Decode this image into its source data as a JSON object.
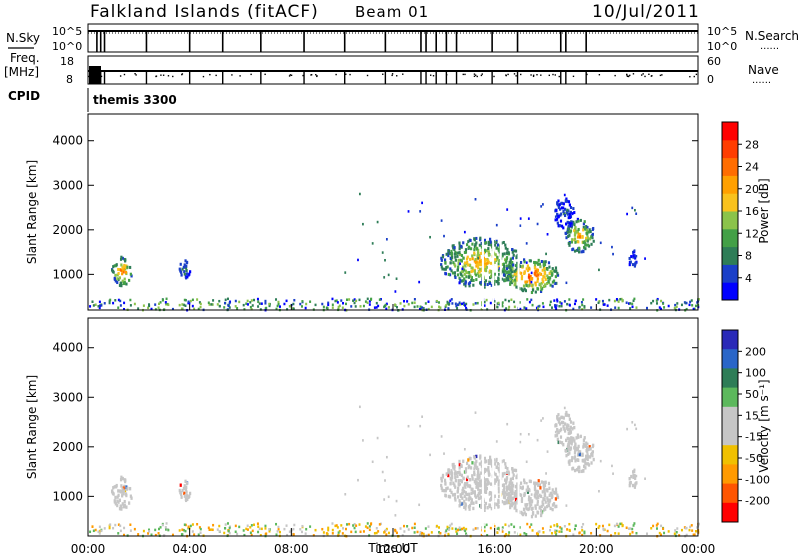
{
  "header": {
    "station": "Falkland Islands (fitACF)",
    "beam": "Beam 01",
    "date": "10/Jul/2011"
  },
  "left_labels": {
    "nsky": "N.Sky",
    "freq": "Freq.",
    "mhz": "[MHz]",
    "cpid": "CPID"
  },
  "right_labels": {
    "nsearch": "N.Search",
    "nave": "Nave",
    "dots": "······"
  },
  "cpid_text": "themis 3300",
  "colors": {
    "power": [
      "#0000ff",
      "#1a3fc8",
      "#2e7d57",
      "#43a047",
      "#8bc34a",
      "#f9c21d",
      "#ffa000",
      "#ff6d00",
      "#ff3d00",
      "#ff0000"
    ],
    "velocity": [
      "#2a2ab8",
      "#2a66c8",
      "#2e7d57",
      "#5cb85c",
      "#c6c6c6",
      "#c6c6c6",
      "#f0c000",
      "#ff9a00",
      "#ff5500",
      "#ff0000"
    ]
  },
  "chart_data": [
    {
      "type": "line",
      "panel": "nsky-nsearch",
      "y_left_ticks": [
        "10^5",
        "10^0"
      ],
      "y_right_ticks": [
        "10^5",
        "10^0"
      ],
      "dropout_hours": [
        0.35,
        0.5,
        0.65,
        2.3,
        4.0,
        5.3,
        6.8,
        8.5,
        10.1,
        11.7,
        13.1,
        13.3,
        13.7,
        14.1,
        14.5,
        15.9,
        16.9,
        18.6,
        18.8,
        19.6
      ]
    },
    {
      "type": "scatter",
      "panel": "freq-nave",
      "y_left_ticks": [
        "18",
        "8"
      ],
      "y_right_ticks": [
        "60",
        "0"
      ]
    },
    {
      "type": "heatmap",
      "panel": "power",
      "ylabel": "Slant Range [km]",
      "yticks": [
        "1000",
        "2000",
        "3000",
        "4000"
      ],
      "ylim": [
        200,
        4600
      ],
      "xlim": [
        0,
        24
      ],
      "colorbar_label": "Power [dB]",
      "colorbar_ticks": [
        "4",
        "8",
        "12",
        "16",
        "20",
        "24",
        "28"
      ],
      "patches": [
        {
          "t": 1.3,
          "r": 1100,
          "dt": 0.4,
          "dr": 330,
          "level": 7
        },
        {
          "t": 3.8,
          "r": 1150,
          "dt": 0.25,
          "dr": 200,
          "level": 2
        },
        {
          "t": 15.4,
          "r": 1300,
          "dt": 1.6,
          "dr": 550,
          "level": 6
        },
        {
          "t": 17.4,
          "r": 1000,
          "dt": 1.1,
          "dr": 380,
          "level": 8
        },
        {
          "t": 19.3,
          "r": 1900,
          "dt": 0.6,
          "dr": 380,
          "level": 6
        },
        {
          "t": 18.7,
          "r": 2400,
          "dt": 0.4,
          "dr": 350,
          "level": 1
        },
        {
          "t": 21.4,
          "r": 1350,
          "dt": 0.15,
          "dr": 230,
          "level": 1
        }
      ]
    },
    {
      "type": "heatmap",
      "panel": "velocity",
      "xlabel": "Time UT",
      "ylabel": "Slant Range [km]",
      "yticks": [
        "1000",
        "2000",
        "3000",
        "4000"
      ],
      "ylim": [
        200,
        4600
      ],
      "xlim": [
        0,
        24
      ],
      "xticks": [
        "00:00",
        "04:00",
        "08:00",
        "12:00",
        "16:00",
        "20:00",
        "00:00"
      ],
      "colorbar_label": "Velocity [m s⁻¹]",
      "colorbar_ticks": [
        "200",
        "100",
        "50",
        "15",
        "-15",
        "-50",
        "-100",
        "-200"
      ]
    }
  ]
}
